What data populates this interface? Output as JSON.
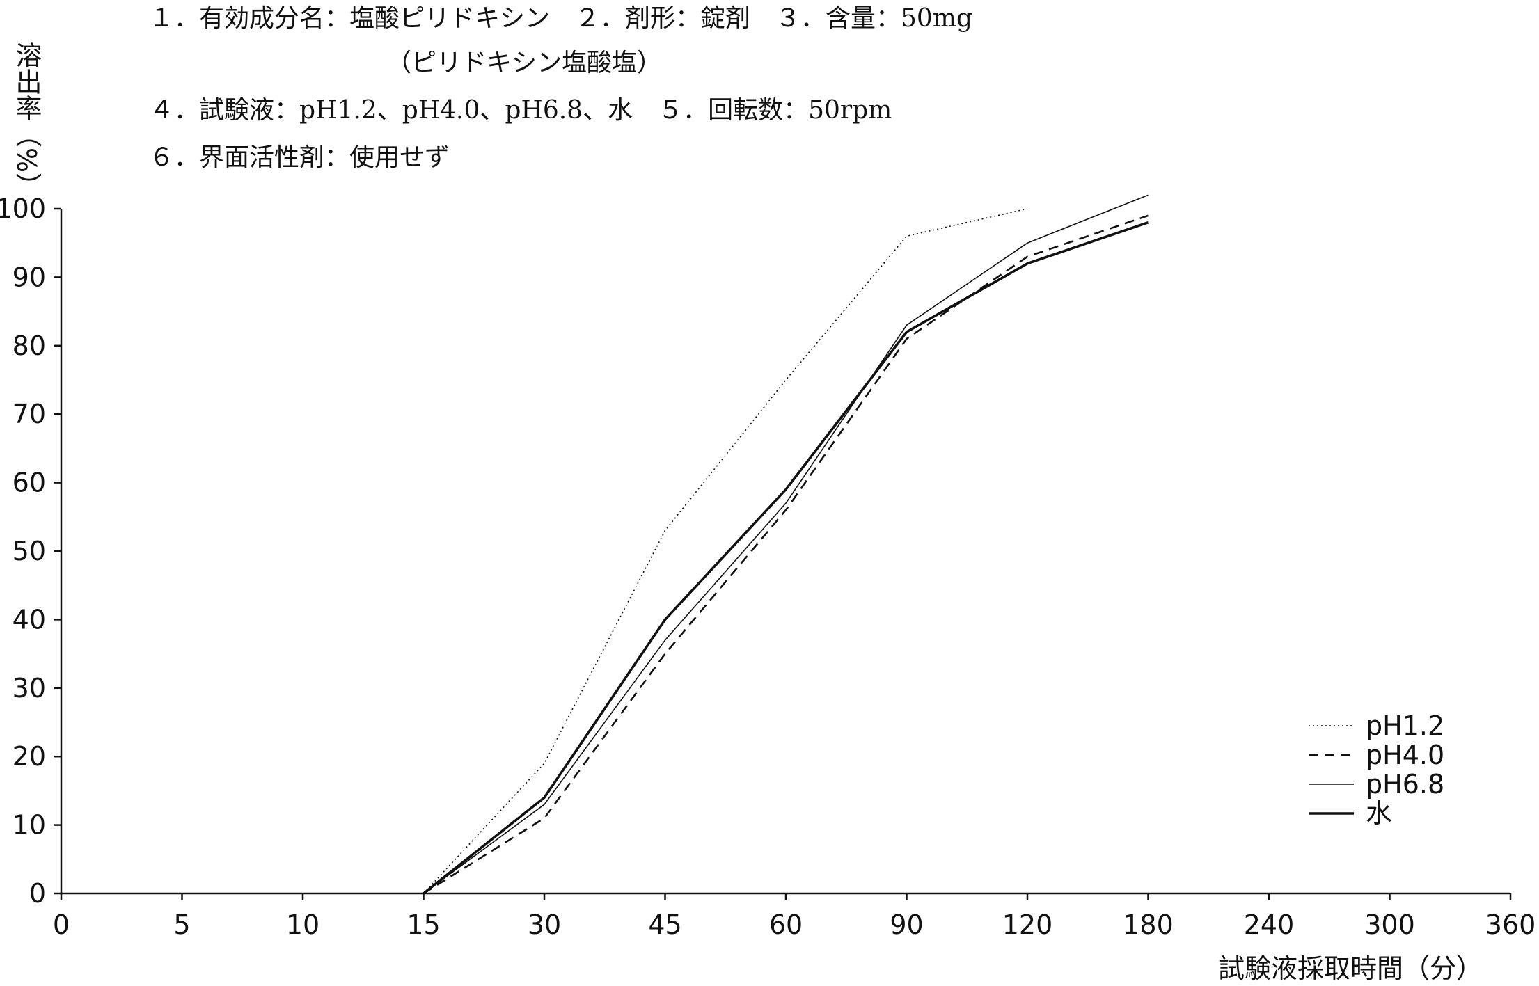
{
  "header": {
    "line1": "１．有効成分名：塩酸ピリドキシン　２．剤形：錠剤　３．含量：50mg",
    "line2": "（ピリドキシン塩酸塩）",
    "line3": "４．試験液：pH1.2、pH4.0、pH6.8、水　５．回転数：50rpm",
    "line4": "６．界面活性剤：使用せず"
  },
  "chart_data": {
    "type": "line",
    "title": "",
    "xlabel": "試験液採取時間（分）",
    "ylabel": "溶出率（%）",
    "x_categories": [
      "0",
      "5",
      "10",
      "15",
      "30",
      "45",
      "60",
      "90",
      "120",
      "180",
      "240",
      "300",
      "360"
    ],
    "x_scale": "categorical (equally spaced time points)",
    "ylim": [
      0,
      100
    ],
    "yticks": [
      "0",
      "10",
      "20",
      "30",
      "40",
      "50",
      "60",
      "70",
      "80",
      "90",
      "100"
    ],
    "grid": false,
    "legend_position": "bottom-right",
    "series": [
      {
        "name": "pH1.2",
        "style": "dotted",
        "color": "#111111",
        "x": [
          "15",
          "30",
          "45",
          "60",
          "90",
          "120"
        ],
        "values": [
          0,
          19,
          53,
          75,
          96,
          100
        ]
      },
      {
        "name": "pH4.0",
        "style": "dashed",
        "color": "#111111",
        "x": [
          "15",
          "30",
          "45",
          "60",
          "90",
          "120",
          "180"
        ],
        "values": [
          0,
          11,
          35,
          56,
          81,
          93,
          99
        ]
      },
      {
        "name": "pH6.8",
        "style": "thin",
        "color": "#111111",
        "x": [
          "15",
          "30",
          "45",
          "60",
          "90",
          "120",
          "180"
        ],
        "values": [
          0,
          13,
          37,
          57,
          83,
          95,
          102
        ]
      },
      {
        "name": "水",
        "style": "thick",
        "color": "#111111",
        "x": [
          "15",
          "30",
          "45",
          "60",
          "90",
          "120",
          "180"
        ],
        "values": [
          0,
          14,
          40,
          59,
          82,
          92,
          98
        ]
      }
    ]
  }
}
